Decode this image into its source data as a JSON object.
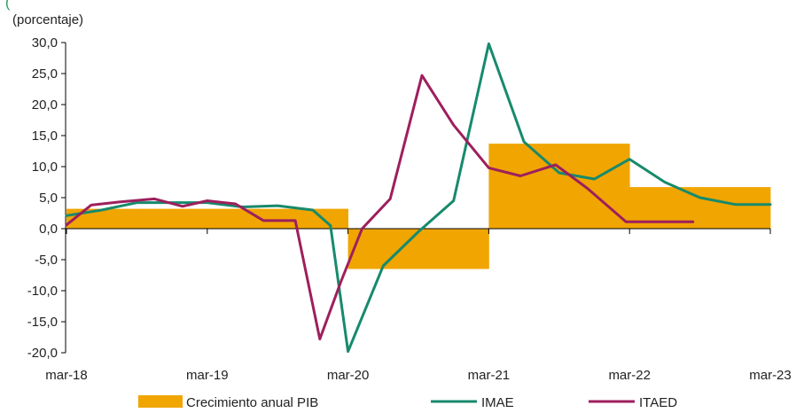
{
  "chart_data": {
    "type": "line",
    "top_fragment": "(",
    "unit_label": "(porcentaje)",
    "y_ticks": [
      "30,0",
      "25,0",
      "20,0",
      "15,0",
      "10,0",
      "5,0",
      "0,0",
      "-5,0",
      "-10,0",
      "-15,0",
      "-20,0"
    ],
    "ylim": [
      -20,
      30
    ],
    "x_ticks": [
      "mar-18",
      "mar-19",
      "mar-20",
      "mar-21",
      "mar-22",
      "mar-23"
    ],
    "x_tick_values": [
      0,
      4,
      8,
      12,
      16,
      20
    ],
    "x_unit": "quarter",
    "x_range": [
      0,
      20
    ],
    "bar_series": {
      "name": "Crecimiento anual PIB",
      "color": "#f0a500",
      "values": [
        3.2,
        3.2,
        3.2,
        3.2,
        3.2,
        3.2,
        3.2,
        3.2,
        -6.5,
        -6.5,
        -6.5,
        -6.5,
        13.7,
        13.7,
        13.7,
        13.7,
        6.7,
        6.7,
        6.7,
        6.7
      ]
    },
    "series": [
      {
        "name": "IMAE",
        "color": "#178a6c",
        "x": [
          0,
          1,
          2,
          3,
          4,
          5,
          6,
          7,
          7.5,
          8,
          9,
          10,
          11,
          12,
          13,
          14,
          15,
          16,
          17,
          18,
          19,
          20
        ],
        "values": [
          2.1,
          3.0,
          4.2,
          4.2,
          4.2,
          3.5,
          3.7,
          3.0,
          0.5,
          -19.8,
          -6.0,
          -0.5,
          4.5,
          29.8,
          14.0,
          9.0,
          8.0,
          11.2,
          7.5,
          5.0,
          3.9,
          3.9
        ]
      },
      {
        "name": "ITAED",
        "color": "#9e1f5d",
        "x": [
          0,
          0.7,
          1.5,
          2.5,
          3.3,
          4.0,
          4.8,
          5.6,
          6.5,
          7.2,
          7.8,
          8.4,
          9.2,
          10.1,
          11.0,
          12.0,
          12.9,
          13.9,
          14.8,
          15.9,
          16.9,
          17.8
        ],
        "values": [
          0.6,
          3.8,
          4.3,
          4.8,
          3.6,
          4.5,
          4.0,
          1.3,
          1.3,
          -17.8,
          -8.5,
          0.0,
          4.8,
          24.7,
          16.7,
          9.8,
          8.5,
          10.3,
          6.5,
          1.1,
          1.1,
          1.1
        ]
      }
    ],
    "legend_placement": "bottom",
    "grid": false
  }
}
